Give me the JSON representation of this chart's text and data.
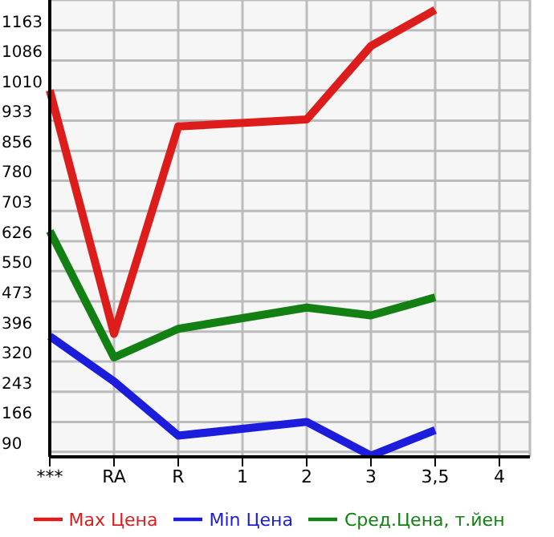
{
  "chart_data": {
    "type": "line",
    "categories": [
      "***",
      "RA",
      "R",
      "1",
      "2",
      "3",
      "3,5",
      "4"
    ],
    "series": [
      {
        "name": "Max Цена",
        "color": "#dd1c1c",
        "values": [
          1010,
          390,
          918,
          null,
          936,
          1123,
          1215,
          null
        ]
      },
      {
        "name": "Min Цена",
        "color": "#1c1cdd",
        "values": [
          384,
          269,
          131,
          null,
          166,
          80,
          145,
          null
        ]
      },
      {
        "name": "Сред.Цена, т.йен",
        "color": "#138013",
        "values": [
          652,
          330,
          403,
          null,
          457,
          437,
          483,
          null
        ]
      }
    ],
    "ylim": [
      77,
      1240
    ],
    "yticks": [
      90,
      166,
      243,
      320,
      396,
      473,
      550,
      626,
      703,
      780,
      856,
      933,
      1010,
      1086,
      1163
    ],
    "grid": true,
    "legend": "bottom",
    "marker": "none",
    "line_style": "solid"
  }
}
